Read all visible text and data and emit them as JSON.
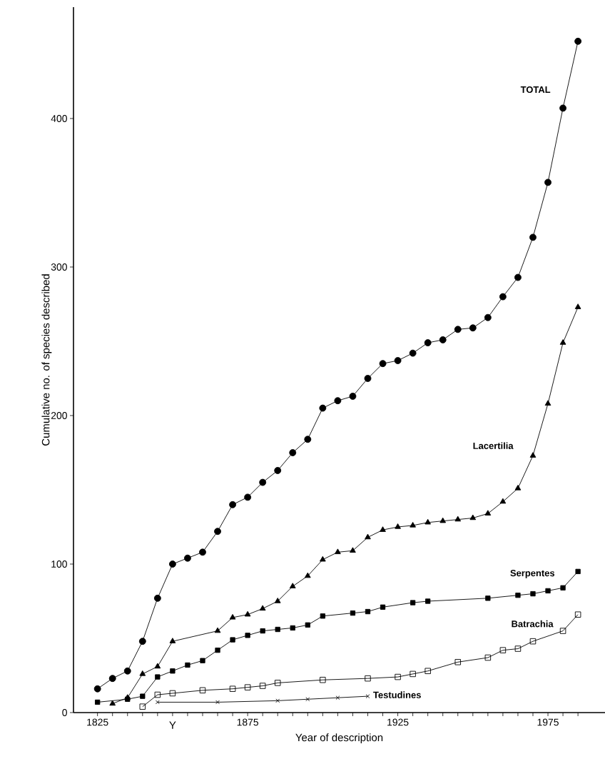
{
  "chart_data": {
    "type": "line",
    "xlabel": "Year of description",
    "ylabel": "Cumulative no. of species described",
    "xlim": [
      1817,
      1994
    ],
    "ylim": [
      0,
      475
    ],
    "xticks": [
      1825,
      {
        "value": 1830,
        "label": null
      },
      {
        "value": 1835,
        "label": null
      },
      {
        "value": 1840,
        "label": null
      },
      {
        "value": 1845,
        "label": null
      },
      {
        "value": 1850,
        "label": null
      },
      {
        "value": 1855,
        "label": null
      },
      {
        "value": 1860,
        "label": null
      },
      {
        "value": 1865,
        "label": null
      },
      {
        "value": 1870,
        "label": null
      },
      1875,
      {
        "value": 1880,
        "label": null
      },
      {
        "value": 1885,
        "label": null
      },
      {
        "value": 1890,
        "label": null
      },
      {
        "value": 1895,
        "label": null
      },
      {
        "value": 1900,
        "label": null
      },
      {
        "value": 1905,
        "label": null
      },
      {
        "value": 1910,
        "label": null
      },
      {
        "value": 1915,
        "label": null
      },
      {
        "value": 1920,
        "label": null
      },
      1925,
      {
        "value": 1930,
        "label": null
      },
      {
        "value": 1935,
        "label": null
      },
      {
        "value": 1940,
        "label": null
      },
      {
        "value": 1945,
        "label": null
      },
      {
        "value": 1950,
        "label": null
      },
      {
        "value": 1955,
        "label": null
      },
      {
        "value": 1960,
        "label": null
      },
      {
        "value": 1965,
        "label": null
      },
      {
        "value": 1970,
        "label": null
      },
      1975,
      {
        "value": 1980,
        "label": null
      },
      {
        "value": 1985,
        "label": null
      }
    ],
    "yticks": [
      0,
      100,
      200,
      300,
      400
    ],
    "grid": false,
    "line_style": "solid",
    "annotations": [
      "Y"
    ],
    "series": [
      {
        "name": "TOTAL",
        "color": "#000000",
        "marker": "circle",
        "x": [
          1825,
          1830,
          1835,
          1840,
          1845,
          1850,
          1855,
          1860,
          1865,
          1870,
          1875,
          1880,
          1885,
          1890,
          1895,
          1900,
          1905,
          1910,
          1915,
          1920,
          1925,
          1930,
          1935,
          1940,
          1945,
          1950,
          1955,
          1960,
          1965,
          1970,
          1975,
          1980,
          1985
        ],
        "values": [
          16,
          23,
          28,
          48,
          77,
          100,
          104,
          108,
          122,
          140,
          145,
          155,
          163,
          175,
          184,
          205,
          210,
          213,
          225,
          235,
          237,
          242,
          249,
          251,
          258,
          259,
          266,
          280,
          293,
          320,
          357,
          407,
          452
        ]
      },
      {
        "name": "Lacertilia",
        "color": "#000000",
        "marker": "triangle",
        "x": [
          1830,
          1835,
          1840,
          1845,
          1850,
          1865,
          1870,
          1875,
          1880,
          1885,
          1890,
          1895,
          1900,
          1905,
          1910,
          1915,
          1920,
          1925,
          1930,
          1935,
          1940,
          1945,
          1950,
          1955,
          1960,
          1965,
          1970,
          1975,
          1980,
          1985
        ],
        "values": [
          6,
          10,
          26,
          31,
          48,
          55,
          64,
          66,
          70,
          75,
          85,
          92,
          103,
          108,
          109,
          118,
          123,
          125,
          126,
          128,
          129,
          130,
          131,
          134,
          142,
          151,
          173,
          208,
          249,
          273
        ]
      },
      {
        "name": "Serpentes",
        "color": "#000000",
        "marker": "square",
        "x": [
          1825,
          1835,
          1840,
          1845,
          1850,
          1855,
          1860,
          1865,
          1870,
          1875,
          1880,
          1885,
          1890,
          1895,
          1900,
          1910,
          1915,
          1920,
          1930,
          1935,
          1955,
          1965,
          1970,
          1975,
          1980,
          1985
        ],
        "values": [
          7,
          9,
          11,
          24,
          28,
          32,
          35,
          42,
          49,
          52,
          55,
          56,
          57,
          59,
          65,
          67,
          68,
          71,
          74,
          75,
          77,
          79,
          80,
          82,
          84,
          95
        ]
      },
      {
        "name": "Batrachia",
        "color": "#000000",
        "marker": "square_open",
        "x": [
          1840,
          1845,
          1850,
          1860,
          1870,
          1875,
          1880,
          1885,
          1900,
          1915,
          1925,
          1930,
          1935,
          1945,
          1955,
          1960,
          1965,
          1970,
          1980,
          1985
        ],
        "values": [
          4,
          12,
          13,
          15,
          16,
          17,
          18,
          20,
          22,
          23,
          24,
          26,
          28,
          34,
          37,
          42,
          43,
          48,
          55,
          66
        ]
      },
      {
        "name": "Testudines",
        "color": "#000000",
        "marker": "cross",
        "x": [
          1845,
          1865,
          1885,
          1895,
          1905,
          1915
        ],
        "values": [
          7,
          7,
          8,
          9,
          10,
          11
        ]
      }
    ]
  }
}
